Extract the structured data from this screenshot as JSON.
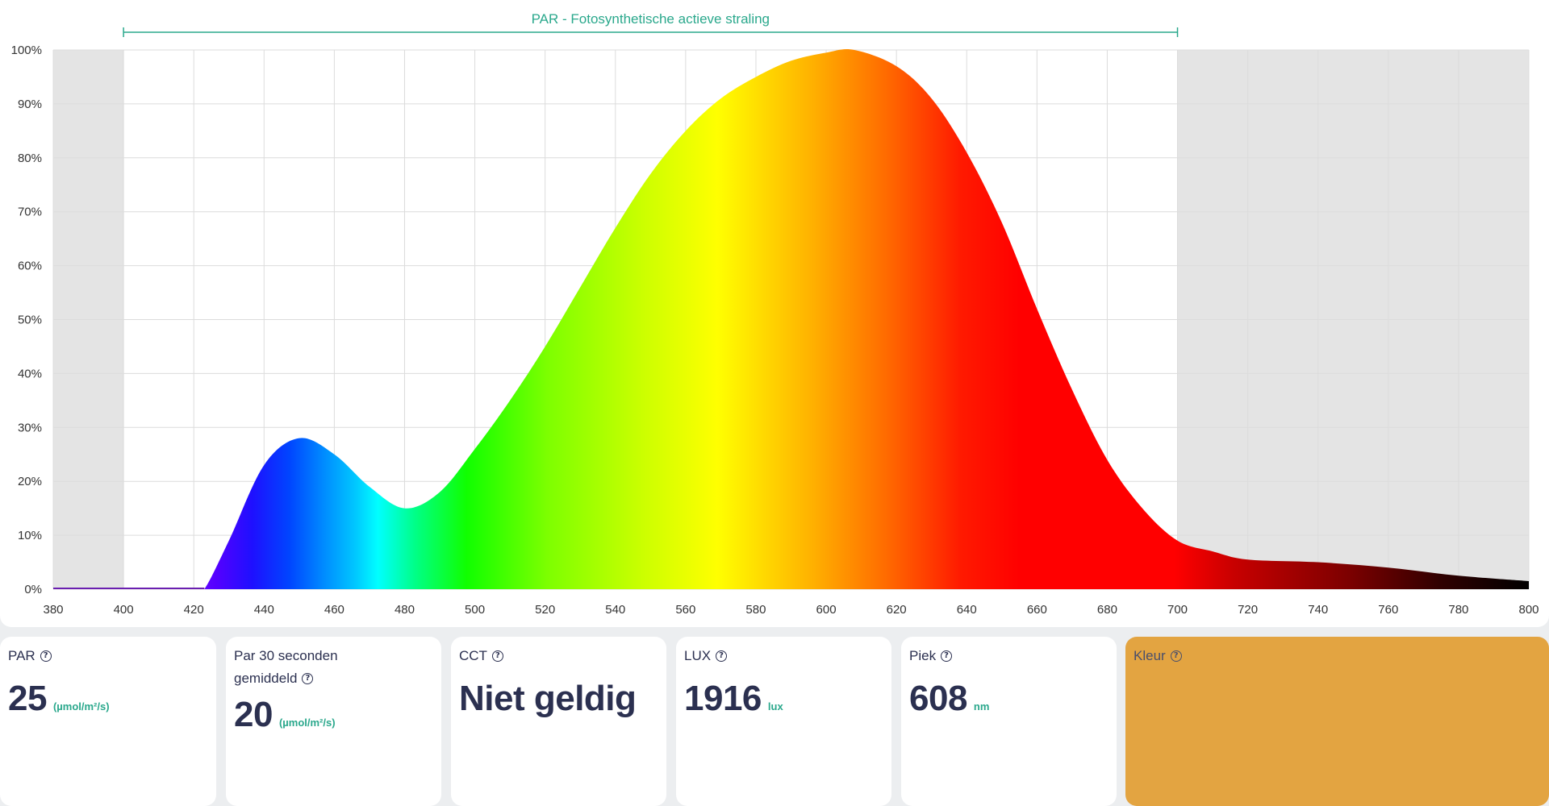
{
  "chart_data": {
    "type": "area",
    "title": "PAR - Fotosynthetische actieve straling",
    "par_range": [
      400,
      700
    ],
    "xlim": [
      380,
      800
    ],
    "ylim": [
      0,
      100
    ],
    "x_ticks": [
      "380",
      "400",
      "420",
      "440",
      "460",
      "480",
      "500",
      "520",
      "540",
      "560",
      "580",
      "600",
      "620",
      "640",
      "660",
      "680",
      "700",
      "720",
      "740",
      "760",
      "780",
      "800"
    ],
    "y_ticks": [
      "0%",
      "10%",
      "20%",
      "30%",
      "40%",
      "50%",
      "60%",
      "70%",
      "80%",
      "90%",
      "100%"
    ],
    "grid": true,
    "x": [
      380,
      400,
      420,
      423,
      430,
      440,
      450,
      460,
      470,
      480,
      490,
      500,
      510,
      520,
      530,
      540,
      550,
      560,
      570,
      580,
      590,
      600,
      608,
      620,
      630,
      640,
      650,
      660,
      670,
      680,
      690,
      700,
      710,
      720,
      740,
      760,
      780,
      800
    ],
    "values": [
      0,
      0,
      0,
      0,
      9,
      23,
      28,
      25,
      19,
      15,
      18,
      26,
      35,
      45,
      56,
      67,
      77,
      85,
      91,
      95,
      98,
      99.5,
      100,
      97,
      91,
      81,
      68,
      52,
      37,
      24,
      15,
      9,
      7,
      5.5,
      5,
      4,
      2.5,
      1.5
    ]
  },
  "cards": {
    "par": {
      "label": "PAR",
      "value": "25",
      "unit": "(µmol/m²/s)"
    },
    "par30_line1": "Par 30 seconden",
    "par30_line2": "gemiddeld",
    "par30": {
      "value": "20",
      "unit": "(µmol/m²/s)"
    },
    "cct": {
      "label": "CCT",
      "value": "Niet geldig"
    },
    "lux": {
      "label": "LUX",
      "value": "1916",
      "unit": "lux"
    },
    "peak": {
      "label": "Piek",
      "value": "608",
      "unit": "nm"
    },
    "color": {
      "label": "Kleur",
      "swatch": "#e3a441"
    }
  },
  "colors": {
    "accent": "#2aa88c",
    "text": "#2b3050",
    "shade": "#e4e4e4"
  },
  "icons": {
    "help": "help-circle-icon"
  }
}
